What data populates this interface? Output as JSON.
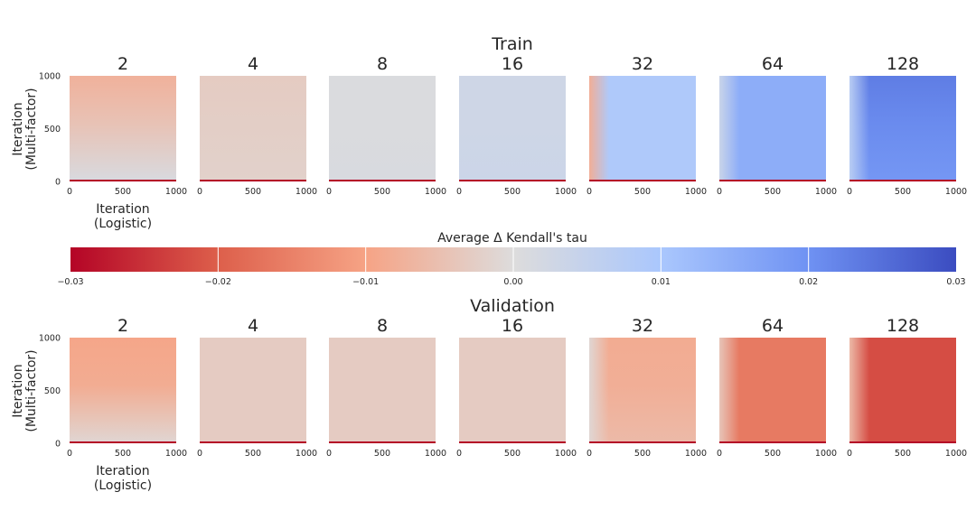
{
  "sections": [
    {
      "title": "Train"
    },
    {
      "title": "Validation"
    }
  ],
  "colorbar": {
    "label": "Average Δ Kendall's tau",
    "min": -0.03,
    "max": 0.03,
    "ticks": [
      "−0.03",
      "−0.02",
      "−0.01",
      "0.00",
      "0.01",
      "0.02",
      "0.03"
    ],
    "colormap": "coolwarm",
    "stops": [
      "#b40426",
      "#dd5f4b",
      "#f6a385",
      "#dddcdc",
      "#aac7fd",
      "#6f92f3",
      "#3b4cc0"
    ]
  },
  "axes": {
    "ylabel_line1": "Iteration",
    "ylabel_line2": "(Multi-factor)",
    "xlabel_line1": "Iteration",
    "xlabel_line2": "(Logistic)",
    "x_ticks": [
      "0",
      "500",
      "1000"
    ],
    "y_ticks": [
      "1000",
      "500",
      "0"
    ]
  },
  "chart_data": [
    {
      "type": "heatmap",
      "title": "Train",
      "xlabel": "Iteration (Logistic)",
      "ylabel": "Iteration (Multi-factor)",
      "x_range": [
        0,
        1000
      ],
      "y_range": [
        0,
        1000
      ],
      "value_range": [
        -0.03,
        0.03
      ],
      "panels": [
        {
          "label": "2",
          "approx_top": -0.0075,
          "approx_mid": -0.0045,
          "approx_bottom": 0.001,
          "left_edge": null
        },
        {
          "label": "4",
          "approx_top": -0.003,
          "approx_mid": -0.0025,
          "approx_bottom": -0.002,
          "left_edge": null
        },
        {
          "label": "8",
          "approx_top": 0.0005,
          "approx_mid": 0.0005,
          "approx_bottom": 0.001,
          "left_edge": null
        },
        {
          "label": "16",
          "approx_top": 0.003,
          "approx_mid": 0.003,
          "approx_bottom": 0.0035,
          "left_edge": null
        },
        {
          "label": "32",
          "approx_top": 0.009,
          "approx_mid": 0.009,
          "approx_bottom": 0.009,
          "left_edge": -0.008
        },
        {
          "label": "64",
          "approx_top": 0.015,
          "approx_mid": 0.015,
          "approx_bottom": 0.015,
          "left_edge": 0.004
        },
        {
          "label": "128",
          "approx_top": 0.023,
          "approx_mid": 0.021,
          "approx_bottom": 0.019,
          "left_edge": 0.007
        }
      ]
    },
    {
      "type": "heatmap",
      "title": "Validation",
      "xlabel": "Iteration (Logistic)",
      "ylabel": "Iteration (Multi-factor)",
      "x_range": [
        0,
        1000
      ],
      "y_range": [
        0,
        1000
      ],
      "value_range": [
        -0.03,
        0.03
      ],
      "panels": [
        {
          "label": "2",
          "approx_top": -0.0095,
          "approx_mid": -0.0085,
          "approx_bottom": -0.001,
          "left_edge": null
        },
        {
          "label": "4",
          "approx_top": -0.003,
          "approx_mid": -0.003,
          "approx_bottom": -0.003,
          "left_edge": null
        },
        {
          "label": "8",
          "approx_top": -0.003,
          "approx_mid": -0.003,
          "approx_bottom": -0.003,
          "left_edge": null
        },
        {
          "label": "16",
          "approx_top": -0.003,
          "approx_mid": -0.003,
          "approx_bottom": -0.003,
          "left_edge": null
        },
        {
          "label": "32",
          "approx_top": -0.0085,
          "approx_mid": -0.008,
          "approx_bottom": -0.006,
          "left_edge": -0.001
        },
        {
          "label": "64",
          "approx_top": -0.016,
          "approx_mid": -0.016,
          "approx_bottom": -0.016,
          "left_edge": -0.004
        },
        {
          "label": "128",
          "approx_top": -0.022,
          "approx_mid": -0.022,
          "approx_bottom": -0.022,
          "left_edge": -0.006
        }
      ]
    }
  ]
}
